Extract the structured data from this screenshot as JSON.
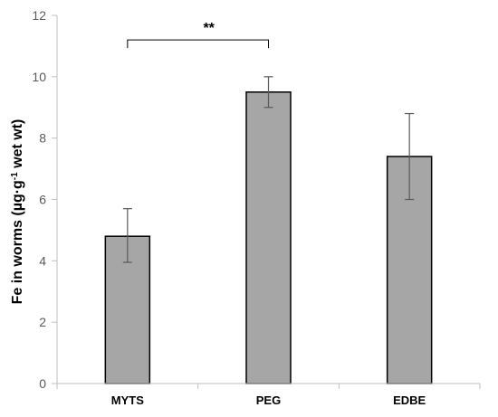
{
  "chart_data": {
    "type": "bar",
    "categories": [
      "MYTS",
      "PEG",
      "EDBE"
    ],
    "values": [
      4.8,
      9.5,
      7.4
    ],
    "error_low": [
      3.95,
      9.0,
      6.0
    ],
    "error_high": [
      5.7,
      10.0,
      8.8
    ],
    "ylabel_parts": [
      "Fe in worms (µg·g",
      "-1",
      " wet wt)"
    ],
    "yticks": [
      0,
      2,
      4,
      6,
      8,
      10,
      12
    ],
    "ylim": [
      0,
      12
    ],
    "grid": false,
    "colors": {
      "bar_fill": "#a6a6a6",
      "bar_stroke": "#000000",
      "axis": "#bfbfbf",
      "error": "#595959"
    },
    "annotation": {
      "text": "**",
      "from": "MYTS",
      "to": "PEG",
      "y": 11.2
    }
  }
}
